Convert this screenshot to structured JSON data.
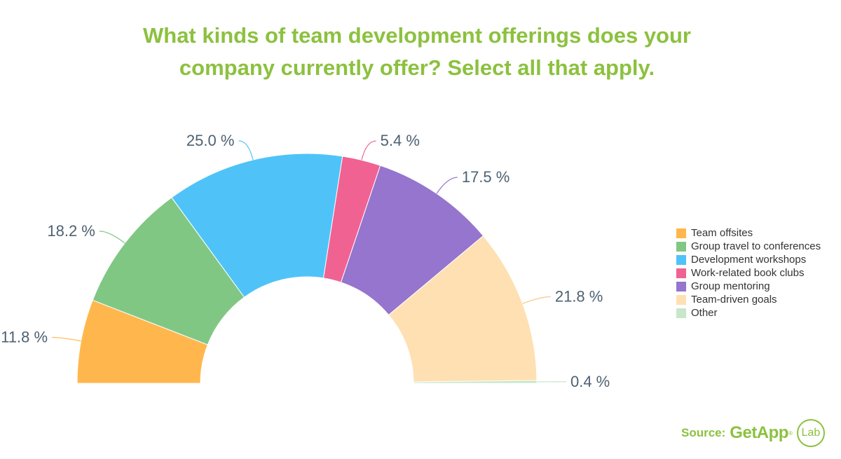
{
  "title_lines": [
    "What kinds of team development offerings does your",
    "company currently offer? Select all that apply."
  ],
  "chart_data": {
    "type": "pie",
    "variant": "semicircle-donut",
    "title": "What kinds of team development offerings does your company currently offer? Select all that apply.",
    "unit": "%",
    "legend_position": "right",
    "slices": [
      {
        "label": "Team offsites",
        "value": 11.8,
        "display": "11.8 %",
        "color": "#ffb74d"
      },
      {
        "label": "Group travel to conferences",
        "value": 18.2,
        "display": "18.2 %",
        "color": "#81c784"
      },
      {
        "label": "Development workshops",
        "value": 25.0,
        "display": "25.0 %",
        "color": "#4fc3f7"
      },
      {
        "label": "Work-related book clubs",
        "value": 5.4,
        "display": "5.4 %",
        "color": "#f06292"
      },
      {
        "label": "Group mentoring",
        "value": 17.5,
        "display": "17.5 %",
        "color": "#9575cd"
      },
      {
        "label": "Team-driven goals",
        "value": 21.8,
        "display": "21.8 %",
        "color": "#ffe0b2"
      },
      {
        "label": "Other",
        "value": 0.4,
        "display": "0.4 %",
        "color": "#c8e6c9"
      }
    ]
  },
  "source": {
    "label": "Source:",
    "brand": "GetApp",
    "registered": "®",
    "lab": "Lab"
  }
}
